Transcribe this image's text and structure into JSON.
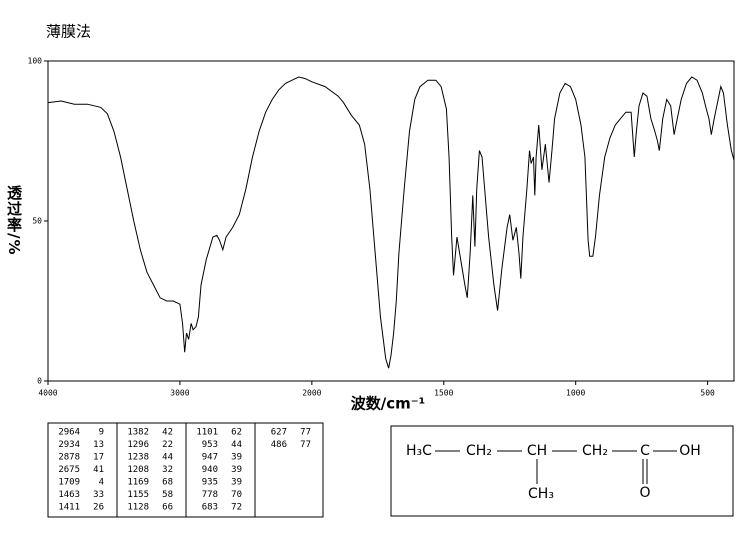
{
  "chart_data": {
    "type": "line",
    "title": "薄膜法",
    "xlabel": "波数/cm⁻¹",
    "ylabel": "透过率/%",
    "xlim": [
      4000,
      400
    ],
    "xscale_break": 2000,
    "xticks": [
      4000,
      3000,
      2000,
      1500,
      1000,
      500
    ],
    "ylim": [
      0,
      100
    ],
    "yticks": [
      0,
      50,
      100
    ],
    "color": "#000000",
    "x": [
      4000,
      3900,
      3800,
      3700,
      3600,
      3550,
      3500,
      3450,
      3400,
      3350,
      3300,
      3250,
      3200,
      3150,
      3100,
      3050,
      3000,
      2980,
      2964,
      2950,
      2934,
      2915,
      2900,
      2878,
      2860,
      2840,
      2800,
      2750,
      2720,
      2700,
      2675,
      2650,
      2600,
      2550,
      2500,
      2450,
      2400,
      2350,
      2300,
      2250,
      2200,
      2150,
      2100,
      2050,
      2000,
      1950,
      1900,
      1880,
      1850,
      1820,
      1800,
      1780,
      1760,
      1740,
      1720,
      1709,
      1700,
      1690,
      1680,
      1670,
      1650,
      1630,
      1610,
      1590,
      1560,
      1530,
      1510,
      1490,
      1480,
      1470,
      1463,
      1450,
      1440,
      1430,
      1420,
      1411,
      1400,
      1390,
      1382,
      1375,
      1365,
      1355,
      1345,
      1330,
      1310,
      1296,
      1280,
      1260,
      1250,
      1238,
      1225,
      1215,
      1208,
      1200,
      1185,
      1175,
      1169,
      1160,
      1155,
      1150,
      1140,
      1128,
      1115,
      1101,
      1090,
      1080,
      1060,
      1040,
      1020,
      1000,
      980,
      965,
      953,
      947,
      940,
      935,
      925,
      910,
      890,
      870,
      850,
      830,
      810,
      790,
      778,
      770,
      760,
      745,
      730,
      715,
      700,
      690,
      683,
      670,
      655,
      640,
      627,
      615,
      600,
      580,
      560,
      540,
      520,
      505,
      495,
      486,
      475,
      460,
      450,
      440,
      425,
      410,
      400
    ],
    "values": [
      87,
      87.5,
      86.5,
      86.5,
      85.5,
      83.5,
      78,
      70,
      60,
      50,
      41,
      34,
      30,
      26,
      25,
      25,
      24,
      18,
      9,
      15,
      13,
      18,
      16,
      17,
      20,
      30,
      38,
      45,
      45.5,
      44,
      41,
      45,
      48,
      52,
      60,
      70,
      78,
      84,
      88,
      91,
      93,
      94,
      95,
      94.5,
      93.5,
      92,
      89,
      87,
      83,
      80,
      74,
      60,
      40,
      20,
      7,
      4,
      8,
      15,
      25,
      40,
      60,
      78,
      88,
      92,
      94,
      94,
      92,
      85,
      70,
      45,
      33,
      45,
      40,
      35,
      30,
      26,
      40,
      58,
      42,
      60,
      72,
      70,
      60,
      45,
      30,
      22,
      35,
      48,
      52,
      44,
      48,
      40,
      32,
      45,
      60,
      72,
      68,
      70,
      58,
      70,
      80,
      66,
      74,
      62,
      72,
      82,
      90,
      93,
      92,
      88,
      80,
      70,
      44,
      39,
      39,
      39,
      45,
      58,
      70,
      76,
      80,
      82,
      84,
      84,
      70,
      78,
      86,
      90,
      89,
      82,
      78,
      75,
      72,
      82,
      88,
      86,
      77,
      82,
      88,
      93,
      95,
      94,
      90,
      85,
      82,
      77,
      82,
      88,
      92,
      90,
      80,
      72,
      69
    ]
  },
  "peak_table": {
    "columns": [
      [
        [
          2964,
          9
        ],
        [
          2934,
          13
        ],
        [
          2878,
          17
        ],
        [
          2675,
          41
        ],
        [
          1709,
          4
        ],
        [
          1463,
          33
        ],
        [
          1411,
          26
        ]
      ],
      [
        [
          1382,
          42
        ],
        [
          1296,
          22
        ],
        [
          1238,
          44
        ],
        [
          1208,
          32
        ],
        [
          1169,
          68
        ],
        [
          1155,
          58
        ],
        [
          1128,
          66
        ]
      ],
      [
        [
          1101,
          62
        ],
        [
          953,
          44
        ],
        [
          947,
          39
        ],
        [
          940,
          39
        ],
        [
          935,
          39
        ],
        [
          778,
          70
        ],
        [
          683,
          72
        ]
      ],
      [
        [
          627,
          77
        ],
        [
          486,
          77
        ]
      ]
    ]
  },
  "structure": {
    "atoms": [
      "H₃C",
      "CH₂",
      "CH",
      "CH₂",
      "C",
      "OH",
      "CH₃",
      "O"
    ]
  }
}
